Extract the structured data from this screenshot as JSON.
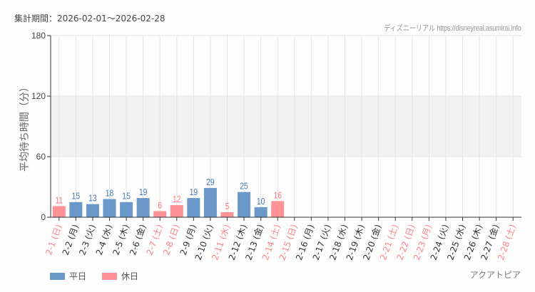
{
  "header": {
    "period_label": "集計期間：2026-02-01～2026-02-28",
    "credit": "ディズニーリアル https://disneyreal.asumirai.info"
  },
  "footer": {
    "facility": "アクアトピア"
  },
  "colors": {
    "weekday": "#6a98c8",
    "holiday": "#ff9296",
    "weekday_text": "#333333",
    "holiday_text": "#ff8488",
    "value_weekday": "#4a7bb0",
    "value_holiday": "#ff7a80",
    "band": "#f2f2f2",
    "grid": "#e4e4e4"
  },
  "legend": [
    {
      "label": "平日",
      "color": "#6a98c8"
    },
    {
      "label": "休日",
      "color": "#ff9296"
    }
  ],
  "chart_data": {
    "type": "bar",
    "title": "",
    "xlabel": "",
    "ylabel": "平均待ち時間（分）",
    "ylim": [
      0,
      180
    ],
    "yticks": [
      0,
      60,
      120,
      180
    ],
    "shaded_band": [
      60,
      120
    ],
    "grid": true,
    "legend_position": "bottom-left",
    "categories": [
      "2-1 (日)",
      "2-2 (月)",
      "2-3 (火)",
      "2-4 (水)",
      "2-5 (木)",
      "2-6 (金)",
      "2-7 (土)",
      "2-8 (日)",
      "2-9 (月)",
      "2-10 (火)",
      "2-11 (水)",
      "2-12 (木)",
      "2-13 (金)",
      "2-14 (土)",
      "2-15 (日)",
      "2-16 (月)",
      "2-17 (火)",
      "2-18 (水)",
      "2-19 (木)",
      "2-20 (金)",
      "2-21 (土)",
      "2-22 (日)",
      "2-23 (月)",
      "2-24 (火)",
      "2-25 (水)",
      "2-26 (木)",
      "2-27 (金)",
      "2-28 (土)"
    ],
    "day_type": [
      "holiday",
      "weekday",
      "weekday",
      "weekday",
      "weekday",
      "weekday",
      "holiday",
      "holiday",
      "weekday",
      "weekday",
      "holiday",
      "weekday",
      "weekday",
      "holiday",
      "holiday",
      "weekday",
      "weekday",
      "weekday",
      "weekday",
      "weekday",
      "holiday",
      "holiday",
      "holiday",
      "weekday",
      "weekday",
      "weekday",
      "weekday",
      "holiday"
    ],
    "values": [
      11,
      15,
      13,
      18,
      15,
      19,
      6,
      12,
      19,
      29,
      5,
      25,
      10,
      16,
      null,
      null,
      null,
      null,
      null,
      null,
      null,
      null,
      null,
      null,
      null,
      null,
      null,
      null
    ],
    "series": [
      {
        "name": "平日",
        "values": [
          null,
          15,
          13,
          18,
          15,
          19,
          null,
          null,
          19,
          29,
          null,
          25,
          10,
          null,
          null,
          null,
          null,
          null,
          null,
          null,
          null,
          null,
          null,
          null,
          null,
          null,
          null,
          null
        ]
      },
      {
        "name": "休日",
        "values": [
          11,
          null,
          null,
          null,
          null,
          null,
          6,
          12,
          null,
          null,
          5,
          null,
          null,
          16,
          null,
          null,
          null,
          null,
          null,
          null,
          null,
          null,
          null,
          null,
          null,
          null,
          null,
          null
        ]
      }
    ]
  }
}
